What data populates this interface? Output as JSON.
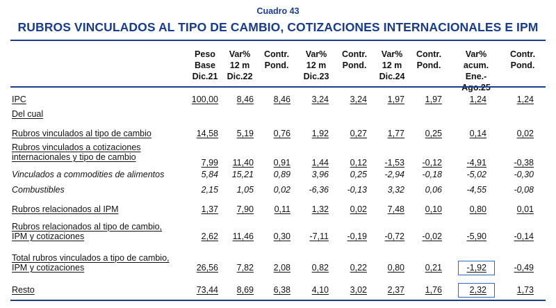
{
  "caption": "Cuadro 43",
  "title": "RUBROS VINCULADOS AL TIPO DE CAMBIO, COTIZACIONES INTERNACIONALES E IPM",
  "columns": [
    [
      "Peso",
      "Base",
      "Dic.21"
    ],
    [
      "Var%",
      "12 m",
      "Dic.22"
    ],
    [
      "Contr.",
      "Pond."
    ],
    [
      "Var%",
      "12 m",
      "Dic.23"
    ],
    [
      "Contr.",
      "Pond."
    ],
    [
      "Var%",
      "12 m",
      "Dic.24"
    ],
    [
      "Contr.",
      "Pond."
    ],
    [
      "Var%",
      "acum.",
      "Ene.-",
      "Ago.25"
    ],
    [
      "Contr.",
      "Pond."
    ]
  ],
  "rows": [
    {
      "label": [
        "IPC"
      ],
      "values": [
        "100,00",
        "8,46",
        "8,46",
        "3,24",
        "3,24",
        "1,97",
        "1,97",
        "1,24",
        "1,24"
      ]
    },
    {
      "label": [
        "Del cual"
      ],
      "values": []
    },
    {
      "label": [
        "Rubros vinculados al tipo de cambio"
      ],
      "values": [
        "14,58",
        "5,19",
        "0,76",
        "1,92",
        "0,27",
        "1,77",
        "0,25",
        "0,14",
        "0,02"
      ]
    },
    {
      "label": [
        "Rubros vinculados a cotizaciones",
        "internacionales y tipo de cambio"
      ],
      "values": [
        "7,99",
        "11,40",
        "0,91",
        "1,44",
        "0,12",
        "-1,53",
        "-0,12",
        "-4,91",
        "-0,38"
      ]
    },
    {
      "label": [
        "Vinculados a commodities de alimentos"
      ],
      "values": [
        "5,84",
        "15,21",
        "0,89",
        "3,96",
        "0,25",
        "-2,94",
        "-0,18",
        "-5,02",
        "-0,30"
      ]
    },
    {
      "label": [
        "Combustibles"
      ],
      "values": [
        "2,15",
        "1,05",
        "0,02",
        "-6,36",
        "-0,13",
        "3,32",
        "0,06",
        "-4,55",
        "-0,08"
      ]
    },
    {
      "label": [
        "Rubros relacionados al IPM"
      ],
      "values": [
        "1,37",
        "7,90",
        "0,11",
        "1,32",
        "0,02",
        "7,48",
        "0,10",
        "0,80",
        "0,01"
      ]
    },
    {
      "label": [
        "Rubros relacionados al tipo de cambio,",
        "IPM y cotizaciones"
      ],
      "values": [
        "2,62",
        "11,46",
        "0,30",
        "-7,11",
        "-0,19",
        "-0,72",
        "-0,02",
        "-5,90",
        "-0,14"
      ]
    },
    {
      "label": [
        "Total rubros vinculados a tipo de cambio,",
        "IPM y cotizaciones"
      ],
      "values": [
        "26,56",
        "7,82",
        "2,08",
        "0,82",
        "0,22",
        "0,80",
        "0,21",
        "-1,92",
        "-0,49"
      ]
    },
    {
      "label": [
        "Resto"
      ],
      "values": [
        "73,44",
        "8,69",
        "6,38",
        "4,10",
        "3,02",
        "2,37",
        "1,76",
        "2,32",
        "1,73"
      ]
    }
  ],
  "colors": {
    "title": "#1a3c8c",
    "rule": "#1a3c8c",
    "highlight_box": "#2c67c0"
  }
}
